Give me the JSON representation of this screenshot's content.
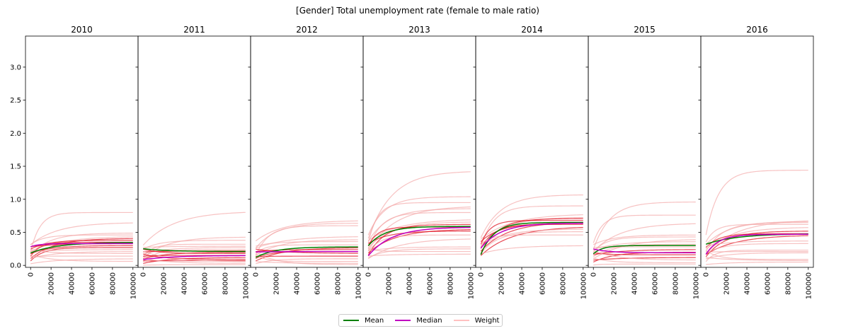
{
  "chart_data": {
    "type": "line",
    "title": "[Gender] Total unemployment rate (female to male ratio)",
    "panels": [
      {
        "title": "2010",
        "mean": 0.35,
        "median": 0.33,
        "weights": [
          0.8,
          0.65,
          0.49,
          0.46,
          0.44,
          0.41,
          0.38,
          0.35,
          0.33,
          0.3,
          0.27,
          0.24,
          0.21,
          0.18,
          0.14,
          0.1,
          0.06
        ]
      },
      {
        "title": "2011",
        "mean": 0.21,
        "median": 0.15,
        "weights": [
          0.82,
          0.43,
          0.38,
          0.32,
          0.29,
          0.27,
          0.24,
          0.22,
          0.2,
          0.18,
          0.15,
          0.12,
          0.09,
          0.07,
          0.05,
          0.03,
          0.01
        ]
      },
      {
        "title": "2012",
        "mean": 0.28,
        "median": 0.21,
        "weights": [
          0.68,
          0.64,
          0.6,
          0.44,
          0.39,
          0.36,
          0.31,
          0.27,
          0.24,
          0.21,
          0.18,
          0.14,
          0.1,
          0.06,
          0.03,
          0.01
        ]
      },
      {
        "title": "2013",
        "mean": 0.59,
        "median": 0.58,
        "weights": [
          1.43,
          1.04,
          0.95,
          0.9,
          0.86,
          0.8,
          0.7,
          0.66,
          0.62,
          0.58,
          0.55,
          0.52,
          0.46,
          0.41,
          0.28,
          0.25,
          0.21,
          0.17
        ]
      },
      {
        "title": "2014",
        "mean": 0.65,
        "median": 0.64,
        "weights": [
          1.07,
          0.9,
          0.78,
          0.73,
          0.71,
          0.68,
          0.66,
          0.64,
          0.62,
          0.59,
          0.55,
          0.51,
          0.46,
          0.3
        ]
      },
      {
        "title": "2015",
        "mean": 0.3,
        "median": 0.19,
        "weights": [
          0.96,
          0.76,
          0.64,
          0.46,
          0.43,
          0.4,
          0.36,
          0.32,
          0.28,
          0.24,
          0.2,
          0.16,
          0.12,
          0.08,
          0.04,
          0.02
        ]
      },
      {
        "title": "2016",
        "mean": 0.48,
        "median": 0.47,
        "weights": [
          1.44,
          0.69,
          0.67,
          0.65,
          0.62,
          0.58,
          0.52,
          0.48,
          0.46,
          0.37,
          0.33,
          0.23,
          0.21,
          0.19,
          0.09,
          0.07,
          0.05
        ]
      }
    ],
    "xlim": [
      -5000,
      105000
    ],
    "ylim": [
      -0.03,
      3.47
    ],
    "xticks": [
      0,
      20000,
      40000,
      60000,
      80000,
      100000
    ],
    "yticks": [
      0.0,
      0.5,
      1.0,
      1.5,
      2.0,
      2.5,
      3.0
    ],
    "ytick_labels": [
      "0.0",
      "0.5",
      "1.0",
      "1.5",
      "2.0",
      "2.5",
      "3.0"
    ],
    "legend": {
      "placement": "bottom-center",
      "entries": [
        {
          "label": "Mean",
          "color": "#008000"
        },
        {
          "label": "Median",
          "color": "#c000c0"
        },
        {
          "label": "Weight",
          "color": "#ffc0c0"
        }
      ]
    },
    "weight_color": "#f4a8a8",
    "near_color": "#e01020"
  }
}
